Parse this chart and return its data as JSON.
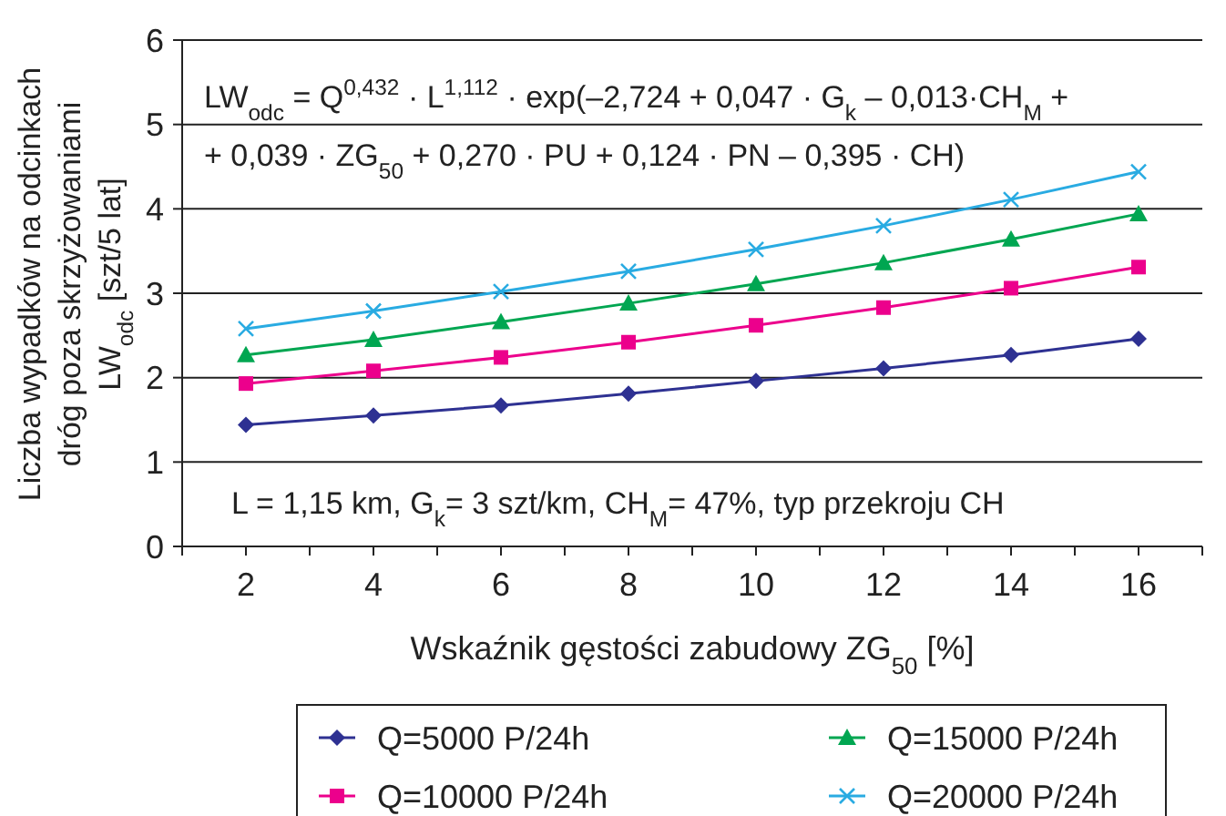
{
  "chart_data": {
    "type": "line",
    "xlabel": "Wskaźnik gęstości zabudowy ZG$_{50}$ [%]",
    "ylabel": "Liczba wypadków na odcinkach\ndróg poza skrzyżowaniami\nLW$_{odc}$ [szt/5 lat]",
    "x": [
      2,
      4,
      6,
      8,
      10,
      12,
      14,
      16
    ],
    "xlim": [
      1,
      17
    ],
    "xticks": [
      {
        "value": 1,
        "label": null
      },
      2,
      {
        "value": 3,
        "label": null
      },
      4,
      {
        "value": 5,
        "label": null
      },
      6,
      {
        "value": 7,
        "label": null
      },
      8,
      {
        "value": 9,
        "label": null
      },
      10,
      {
        "value": 11,
        "label": null
      },
      12,
      {
        "value": 13,
        "label": null
      },
      14,
      {
        "value": 15,
        "label": null
      },
      16,
      {
        "value": 17,
        "label": null
      }
    ],
    "ylim": [
      0,
      6
    ],
    "yticks": [
      0,
      1,
      2,
      3,
      4,
      5,
      6
    ],
    "grid": "y",
    "legend": "bottom",
    "annotations": [
      "LW$_{odc}$ = Q$^{0,432}$ · L$^{1,112}$ · exp(–2,724 + 0,047 · G$_{k}$ – 0,013·CH$_{M}$ +",
      "+ 0,039 · ZG$_{50}$ + 0,270 · PU + 0,124 · PN – 0,395 · CH)",
      "L = 1,15 km, G$_{k}$= 3 szt/km, CH$_{M}$= 47%, typ przekroju CH"
    ],
    "series": [
      {
        "name": "Q=5000 P/24h",
        "color": "#2e3192",
        "marker": "diamond",
        "values": [
          1.44,
          1.55,
          1.67,
          1.81,
          1.96,
          2.11,
          2.27,
          2.46
        ]
      },
      {
        "name": "Q=10000 P/24h",
        "color": "#ec008c",
        "marker": "square",
        "values": [
          1.93,
          2.08,
          2.24,
          2.42,
          2.62,
          2.83,
          3.06,
          3.31
        ]
      },
      {
        "name": "Q=15000 P/24h",
        "color": "#00a651",
        "marker": "triangle",
        "values": [
          2.27,
          2.45,
          2.66,
          2.88,
          3.11,
          3.36,
          3.64,
          3.94
        ]
      },
      {
        "name": "Q=20000 P/24h",
        "color": "#29abe2",
        "marker": "cross",
        "values": [
          2.58,
          2.79,
          3.02,
          3.26,
          3.52,
          3.8,
          4.11,
          4.44
        ]
      }
    ]
  }
}
